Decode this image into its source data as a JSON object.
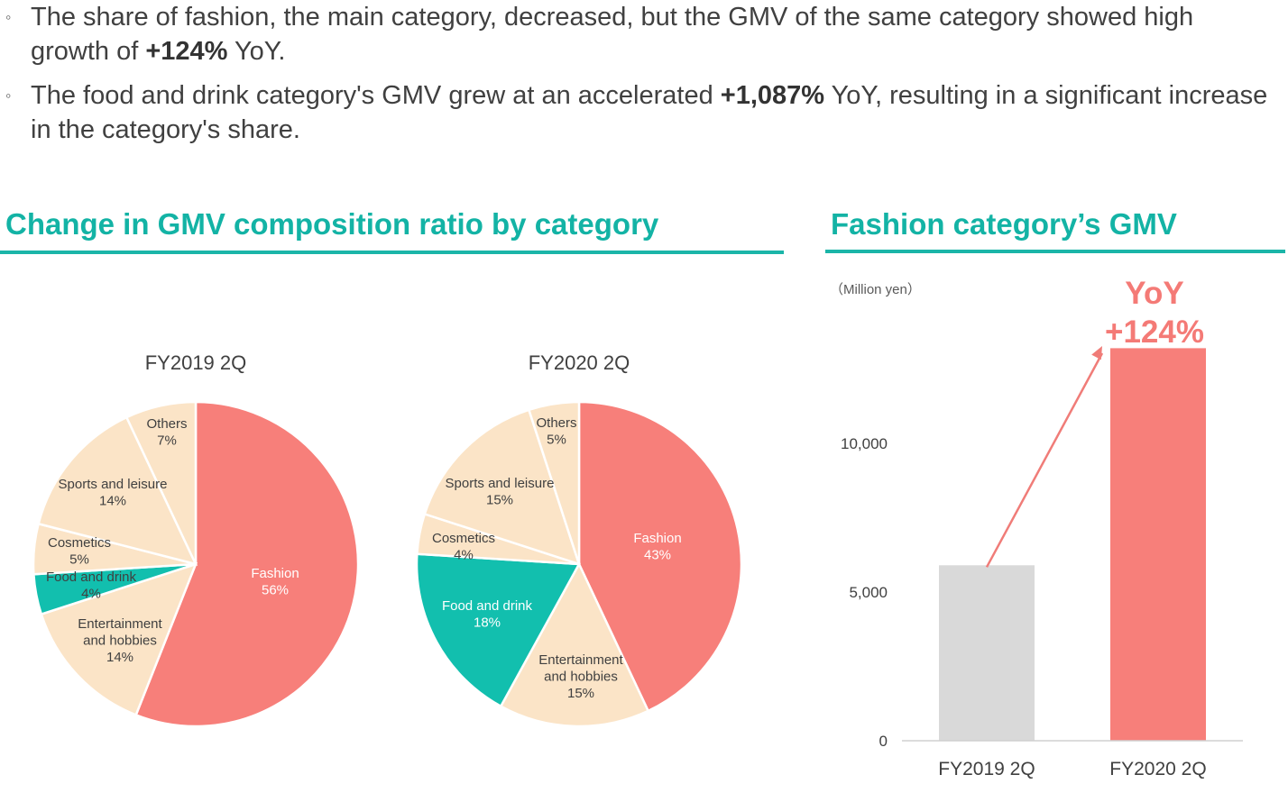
{
  "bullets": [
    {
      "mark": "◦",
      "pre": "The share of fashion, the main category, decreased, but the GMV of the same category showed high growth of ",
      "bold": "+124%",
      "post": " YoY."
    },
    {
      "mark": "◦",
      "pre": "The food and drink category's GMV grew at an accelerated ",
      "bold": "+1,087%",
      "post": " YoY, resulting in a significant increase in the category's share."
    }
  ],
  "sections": {
    "left_title": "Change in GMV composition ratio by category",
    "right_title": "Fashion category’s GMV"
  },
  "colors": {
    "accent": "#13b3a5",
    "fashion": "#f77f7a",
    "food": "#12bfae",
    "other": "#fbe4c7",
    "bar_prev": "#d9d9d9",
    "bar_curr": "#f77f7a"
  },
  "chart_data": [
    {
      "type": "pie",
      "title": "FY2019 2Q",
      "slices": [
        {
          "label": "Fashion",
          "value": 56
        },
        {
          "label": "Entertainment and hobbies",
          "value": 14
        },
        {
          "label": "Food and drink",
          "value": 4
        },
        {
          "label": "Cosmetics",
          "value": 5
        },
        {
          "label": "Sports and leisure",
          "value": 14
        },
        {
          "label": "Others",
          "value": 7
        }
      ]
    },
    {
      "type": "pie",
      "title": "FY2020 2Q",
      "slices": [
        {
          "label": "Fashion",
          "value": 43
        },
        {
          "label": "Entertainment and hobbies",
          "value": 15
        },
        {
          "label": "Food and drink",
          "value": 18
        },
        {
          "label": "Cosmetics",
          "value": 4
        },
        {
          "label": "Sports and leisure",
          "value": 15
        },
        {
          "label": "Others",
          "value": 5
        }
      ]
    },
    {
      "type": "bar",
      "unit_label": "（Million yen）",
      "categories": [
        "FY2019 2Q",
        "FY2020 2Q"
      ],
      "values": [
        5900,
        13200
      ],
      "yticks": [
        0,
        5000,
        10000
      ],
      "ytick_labels": [
        "0",
        "5,000",
        "10,000"
      ],
      "ylim": [
        0,
        15000
      ],
      "annotation": {
        "line1": "YoY",
        "line2": "+124%"
      },
      "grid": false
    }
  ]
}
